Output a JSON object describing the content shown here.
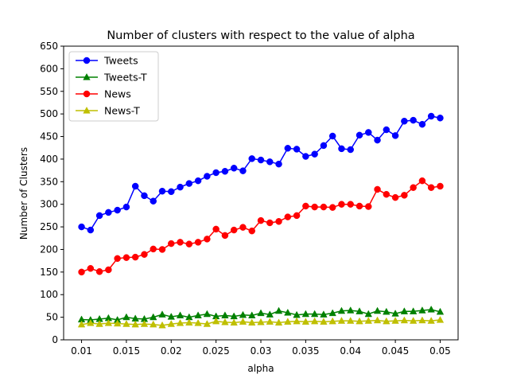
{
  "chart_data": {
    "type": "line",
    "title": "Number of clusters with respect to the value of alpha",
    "xlabel": "alpha",
    "ylabel": "Number of Clusters",
    "xlim": [
      0.008,
      0.052
    ],
    "ylim": [
      0,
      650
    ],
    "xticks": [
      "0.01",
      "0.015",
      "0.02",
      "0.025",
      "0.03",
      "0.035",
      "0.04",
      "0.045",
      "0.05"
    ],
    "yticks": [
      "0",
      "50",
      "100",
      "150",
      "200",
      "250",
      "300",
      "350",
      "400",
      "450",
      "500",
      "550",
      "600",
      "650"
    ],
    "grid": false,
    "legend_position": "top-left",
    "x": [
      0.01,
      0.011,
      0.012,
      0.013,
      0.014,
      0.015,
      0.016,
      0.017,
      0.018,
      0.019,
      0.02,
      0.021,
      0.022,
      0.023,
      0.024,
      0.025,
      0.026,
      0.027,
      0.028,
      0.029,
      0.03,
      0.031,
      0.032,
      0.033,
      0.034,
      0.035,
      0.036,
      0.037,
      0.038,
      0.039,
      0.04,
      0.041,
      0.042,
      0.043,
      0.044,
      0.045,
      0.046,
      0.047,
      0.048,
      0.049,
      0.05
    ],
    "series": [
      {
        "name": "Tweets",
        "color": "#0000ff",
        "marker": "circle",
        "values": [
          250,
          243,
          275,
          282,
          287,
          294,
          340,
          319,
          307,
          329,
          328,
          338,
          346,
          352,
          362,
          370,
          373,
          380,
          374,
          401,
          398,
          394,
          389,
          424,
          422,
          406,
          411,
          430,
          451,
          423,
          421,
          453,
          459,
          442,
          465,
          452,
          484,
          486,
          477,
          495,
          491
        ]
      },
      {
        "name": "Tweets-T",
        "color": "#008000",
        "marker": "triangle",
        "values": [
          45,
          44,
          46,
          48,
          44,
          50,
          47,
          46,
          50,
          56,
          51,
          54,
          50,
          54,
          57,
          52,
          54,
          52,
          55,
          54,
          59,
          56,
          64,
          60,
          55,
          57,
          57,
          56,
          59,
          64,
          65,
          63,
          57,
          64,
          62,
          58,
          63,
          63,
          65,
          67,
          62
        ]
      },
      {
        "name": "News",
        "color": "#ff0000",
        "marker": "circle",
        "values": [
          150,
          158,
          151,
          155,
          180,
          182,
          183,
          189,
          201,
          200,
          213,
          216,
          212,
          216,
          223,
          245,
          231,
          243,
          249,
          241,
          264,
          259,
          262,
          272,
          275,
          296,
          294,
          294,
          293,
          300,
          300,
          296,
          295,
          333,
          322,
          315,
          320,
          337,
          352,
          337,
          340
        ]
      },
      {
        "name": "News-T",
        "color": "#bfbf00",
        "marker": "triangle",
        "values": [
          34,
          37,
          35,
          37,
          36,
          35,
          34,
          35,
          34,
          32,
          35,
          37,
          38,
          37,
          35,
          41,
          39,
          38,
          40,
          38,
          39,
          40,
          38,
          40,
          41,
          40,
          41,
          40,
          41,
          42,
          42,
          41,
          42,
          43,
          41,
          42,
          43,
          42,
          43,
          42,
          44
        ]
      }
    ]
  }
}
